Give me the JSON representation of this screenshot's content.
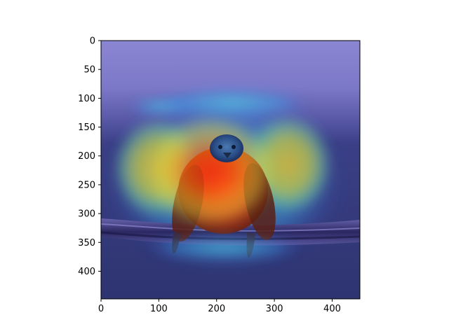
{
  "chart_data": {
    "type": "heatmap",
    "description_of_layers": [
      "photo",
      "heatmap-overlay"
    ],
    "xlim": [
      0,
      448
    ],
    "ylim": [
      448,
      0
    ],
    "x_ticks": [
      0,
      100,
      200,
      300,
      400
    ],
    "y_ticks": [
      0,
      50,
      100,
      150,
      200,
      250,
      300,
      350,
      400
    ],
    "x_tick_labels": [
      "0",
      "100",
      "200",
      "300",
      "400"
    ],
    "y_tick_labels": [
      "0",
      "50",
      "100",
      "150",
      "200",
      "250",
      "300",
      "350",
      "400"
    ],
    "colormap": "jet",
    "overlay_alpha": 0.5,
    "grid": false,
    "title": "",
    "xlabel": "",
    "ylabel": ""
  },
  "colors": {
    "background_top": "#8a86d0",
    "background_bottom": "#2a2f66",
    "axes": "#000000"
  }
}
